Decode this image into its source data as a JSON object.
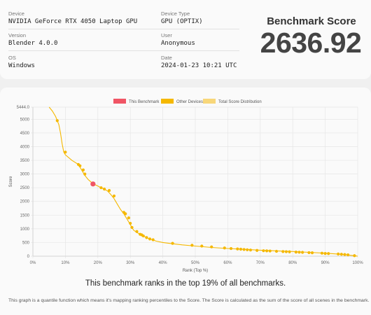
{
  "info": {
    "device": {
      "label": "Device",
      "value": "NVIDIA GeForce RTX 4050 Laptop GPU"
    },
    "device_type": {
      "label": "Device Type",
      "value": "GPU (OPTIX)"
    },
    "version": {
      "label": "Version",
      "value": "Blender 4.0.0"
    },
    "user": {
      "label": "User",
      "value": "Anonymous"
    },
    "os": {
      "label": "OS",
      "value": "Windows"
    },
    "date": {
      "label": "Date",
      "value": "2024-01-23 10:21 UTC"
    }
  },
  "score": {
    "title": "Benchmark Score",
    "value": "2636.92"
  },
  "summary": "This benchmark ranks in the top 19% of all benchmarks.",
  "note": "This graph is a quantile function which means it's mapping ranking percentiles to the Score. The Score is calculated as the sum of the score of all scenes in the benchmark.",
  "colors": {
    "this": "#f05565",
    "other": "#f5b800",
    "dist": "#f8d77a"
  },
  "chart_data": {
    "type": "line",
    "title": "",
    "xlabel": "Rank (Top %)",
    "ylabel": "Score",
    "xlim": [
      0,
      100
    ],
    "ylim": [
      0,
      5444
    ],
    "y_ticks": [
      "0",
      "500",
      "1000",
      "1500",
      "2000",
      "2500",
      "3000",
      "3500",
      "4000",
      "4500",
      "5000",
      "5444.0"
    ],
    "x_ticks": [
      "0%",
      "10%",
      "20%",
      "30%",
      "40%",
      "50%",
      "60%",
      "70%",
      "80%",
      "90%",
      "100%"
    ],
    "legend": [
      "This Benchmark",
      "Other Devices",
      "Total Score Distribution"
    ],
    "legend_position": "top",
    "series": [
      {
        "name": "Total Score Distribution",
        "x": [
          5,
          6,
          7,
          7.5,
          8,
          8.5,
          9,
          9.5,
          10,
          12,
          14,
          15,
          16,
          17,
          18,
          19,
          20,
          21,
          22,
          23,
          24,
          25,
          26,
          27,
          28,
          28.5,
          29,
          30,
          30.5,
          31,
          32,
          33,
          34,
          35,
          36,
          37,
          38,
          40,
          43,
          46,
          50,
          55,
          60,
          65,
          70,
          75,
          80,
          85,
          90,
          95,
          98,
          100
        ],
        "y": [
          5444,
          5300,
          5100,
          4950,
          4800,
          4500,
          4100,
          3800,
          3700,
          3500,
          3350,
          3150,
          2950,
          2800,
          2700,
          2620,
          2560,
          2500,
          2450,
          2380,
          2250,
          2100,
          1900,
          1700,
          1550,
          1450,
          1350,
          1150,
          1050,
          950,
          870,
          800,
          740,
          680,
          630,
          590,
          550,
          500,
          455,
          415,
          370,
          320,
          280,
          250,
          220,
          195,
          170,
          140,
          110,
          70,
          30,
          0
        ]
      },
      {
        "name": "Other Devices",
        "x": [
          7.5,
          10,
          14,
          14.5,
          15.5,
          16,
          21,
          22,
          23.5,
          25,
          28,
          28.5,
          29.5,
          30,
          30.5,
          32,
          33,
          33.5,
          34,
          35,
          36,
          37,
          43,
          49,
          52,
          55,
          59,
          61,
          63,
          64,
          65,
          66,
          67,
          69,
          71,
          72,
          73,
          75,
          77,
          78,
          79,
          81,
          82,
          83,
          85,
          86,
          89,
          90,
          91,
          94,
          95,
          96,
          97,
          99
        ],
        "y": [
          4950,
          3800,
          3350,
          3300,
          3150,
          3000,
          2500,
          2450,
          2400,
          2200,
          1600,
          1550,
          1400,
          1200,
          1050,
          900,
          800,
          780,
          740,
          680,
          630,
          600,
          470,
          400,
          370,
          340,
          300,
          280,
          265,
          255,
          245,
          235,
          225,
          210,
          200,
          195,
          190,
          180,
          170,
          165,
          160,
          150,
          145,
          140,
          130,
          125,
          110,
          100,
          95,
          80,
          70,
          60,
          50,
          20
        ]
      },
      {
        "name": "This Benchmark",
        "x": [
          18.5
        ],
        "y": [
          2636.92
        ]
      }
    ]
  }
}
